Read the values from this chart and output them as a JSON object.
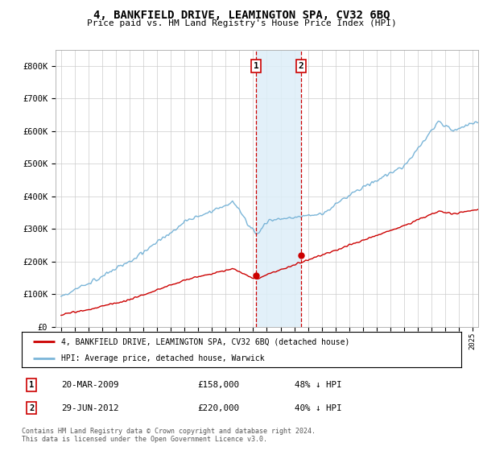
{
  "title": "4, BANKFIELD DRIVE, LEAMINGTON SPA, CV32 6BQ",
  "subtitle": "Price paid vs. HM Land Registry's House Price Index (HPI)",
  "legend_line1": "4, BANKFIELD DRIVE, LEAMINGTON SPA, CV32 6BQ (detached house)",
  "legend_line2": "HPI: Average price, detached house, Warwick",
  "transaction1_date": "20-MAR-2009",
  "transaction1_price": "£158,000",
  "transaction1_hpi": "48% ↓ HPI",
  "transaction1_year": 2009.21,
  "transaction1_value": 158000,
  "transaction2_date": "29-JUN-2012",
  "transaction2_price": "£220,000",
  "transaction2_hpi": "40% ↓ HPI",
  "transaction2_year": 2012.49,
  "transaction2_value": 220000,
  "hpi_color": "#7ab5d8",
  "price_color": "#cc0000",
  "highlight_color": "#ddeef8",
  "ylim": [
    0,
    850000
  ],
  "yticks": [
    0,
    100000,
    200000,
    300000,
    400000,
    500000,
    600000,
    700000,
    800000
  ],
  "ytick_labels": [
    "£0",
    "£100K",
    "£200K",
    "£300K",
    "£400K",
    "£500K",
    "£600K",
    "£700K",
    "£800K"
  ],
  "xlim_start": 1994.6,
  "xlim_end": 2025.4,
  "footer": "Contains HM Land Registry data © Crown copyright and database right 2024.\nThis data is licensed under the Open Government Licence v3.0.",
  "background_color": "#ffffff",
  "grid_color": "#cccccc"
}
